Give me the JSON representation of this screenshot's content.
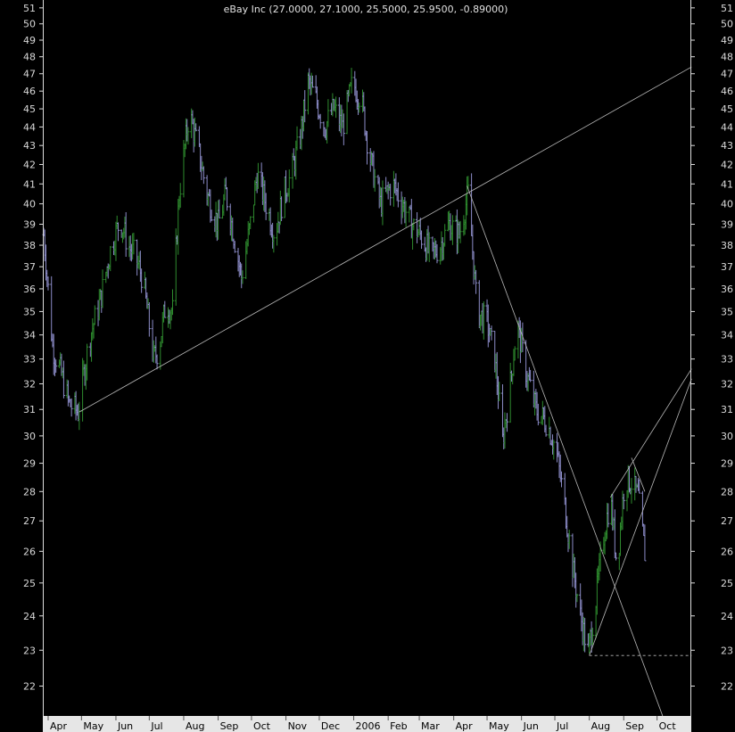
{
  "chart_data": {
    "type": "ohlc",
    "title": "eBay Inc (27.0000, 27.1000, 25.5000, 25.9500, -0.89000)",
    "scale": "log",
    "ylim": [
      21.2,
      51.5
    ],
    "y_ticks": [
      22,
      23,
      24,
      25,
      26,
      27,
      28,
      29,
      30,
      31,
      32,
      33,
      34,
      35,
      36,
      37,
      38,
      39,
      40,
      41,
      42,
      43,
      44,
      45,
      46,
      47,
      48,
      49,
      50,
      51
    ],
    "x_range": [
      "2005-03-28",
      "2006-10-31"
    ],
    "x_labels": [
      {
        "date": "2005-04-01",
        "label": "Apr"
      },
      {
        "date": "2005-05-01",
        "label": "May"
      },
      {
        "date": "2005-06-01",
        "label": "Jun"
      },
      {
        "date": "2005-07-01",
        "label": "Jul"
      },
      {
        "date": "2005-08-01",
        "label": "Aug"
      },
      {
        "date": "2005-09-01",
        "label": "Sep"
      },
      {
        "date": "2005-10-01",
        "label": "Oct"
      },
      {
        "date": "2005-11-01",
        "label": "Nov"
      },
      {
        "date": "2005-12-01",
        "label": "Dec"
      },
      {
        "date": "2006-01-01",
        "label": "2006"
      },
      {
        "date": "2006-02-01",
        "label": "Feb"
      },
      {
        "date": "2006-03-01",
        "label": "Mar"
      },
      {
        "date": "2006-04-01",
        "label": "Apr"
      },
      {
        "date": "2006-05-01",
        "label": "May"
      },
      {
        "date": "2006-06-01",
        "label": "Jun"
      },
      {
        "date": "2006-07-01",
        "label": "Jul"
      },
      {
        "date": "2006-08-01",
        "label": "Aug"
      },
      {
        "date": "2006-09-01",
        "label": "Sep"
      },
      {
        "date": "2006-10-01",
        "label": "Oct"
      }
    ],
    "price_path": [
      [
        "2005-03-28",
        38.5
      ],
      [
        "2005-04-05",
        33.5
      ],
      [
        "2005-04-12",
        32.5
      ],
      [
        "2005-04-20",
        31.2
      ],
      [
        "2005-04-28",
        30.9
      ],
      [
        "2005-05-08",
        33.8
      ],
      [
        "2005-05-18",
        35.5
      ],
      [
        "2005-05-28",
        38.0
      ],
      [
        "2005-06-05",
        39.2
      ],
      [
        "2005-06-12",
        38.0
      ],
      [
        "2005-06-18",
        37.5
      ],
      [
        "2005-06-25",
        36.5
      ],
      [
        "2005-07-05",
        33.0
      ],
      [
        "2005-07-10",
        33.5
      ],
      [
        "2005-07-16",
        35.4
      ],
      [
        "2005-07-22",
        35.0
      ],
      [
        "2005-07-28",
        40.5
      ],
      [
        "2005-08-06",
        44.8
      ],
      [
        "2005-08-15",
        42.5
      ],
      [
        "2005-08-22",
        40.5
      ],
      [
        "2005-09-01",
        39.0
      ],
      [
        "2005-09-08",
        40.5
      ],
      [
        "2005-09-15",
        38.5
      ],
      [
        "2005-09-22",
        36.5
      ],
      [
        "2005-09-30",
        39.0
      ],
      [
        "2005-10-06",
        41.5
      ],
      [
        "2005-10-14",
        40.0
      ],
      [
        "2005-10-22",
        38.5
      ],
      [
        "2005-10-30",
        40.5
      ],
      [
        "2005-11-06",
        41.5
      ],
      [
        "2005-11-14",
        43.5
      ],
      [
        "2005-11-21",
        46.5
      ],
      [
        "2005-11-28",
        45.5
      ],
      [
        "2005-12-06",
        44.0
      ],
      [
        "2005-12-14",
        45.0
      ],
      [
        "2005-12-22",
        44.0
      ],
      [
        "2005-12-31",
        46.5
      ],
      [
        "2006-01-08",
        45.5
      ],
      [
        "2006-01-15",
        42.5
      ],
      [
        "2006-01-25",
        40.0
      ],
      [
        "2006-02-05",
        41.0
      ],
      [
        "2006-02-14",
        40.0
      ],
      [
        "2006-02-22",
        39.0
      ],
      [
        "2006-03-02",
        38.5
      ],
      [
        "2006-03-12",
        37.5
      ],
      [
        "2006-03-20",
        38.0
      ],
      [
        "2006-03-28",
        39.0
      ],
      [
        "2006-04-06",
        38.5
      ],
      [
        "2006-04-14",
        40.5
      ],
      [
        "2006-04-22",
        35.0
      ],
      [
        "2006-05-01",
        34.5
      ],
      [
        "2006-05-08",
        33.0
      ],
      [
        "2006-05-15",
        29.8
      ],
      [
        "2006-05-22",
        32.0
      ],
      [
        "2006-05-28",
        34.5
      ],
      [
        "2006-06-05",
        32.5
      ],
      [
        "2006-06-14",
        31.0
      ],
      [
        "2006-06-24",
        30.5
      ],
      [
        "2006-07-02",
        29.5
      ],
      [
        "2006-07-10",
        27.5
      ],
      [
        "2006-07-17",
        25.5
      ],
      [
        "2006-07-24",
        24.0
      ],
      [
        "2006-07-31",
        22.9
      ],
      [
        "2006-08-07",
        24.5
      ],
      [
        "2006-08-14",
        26.5
      ],
      [
        "2006-08-20",
        27.8
      ],
      [
        "2006-08-26",
        25.5
      ],
      [
        "2006-09-02",
        28.5
      ],
      [
        "2006-09-08",
        28.3
      ],
      [
        "2006-09-14",
        27.8
      ],
      [
        "2006-09-20",
        25.95
      ]
    ],
    "trendlines": [
      {
        "from": [
          "2005-04-29",
          30.9
        ],
        "to": [
          "2006-11-01",
          47.4
        ],
        "style": "solid"
      },
      {
        "from": [
          "2006-04-13",
          40.9
        ],
        "to": [
          "2006-10-15",
          20.5
        ],
        "style": "solid"
      },
      {
        "from": [
          "2006-08-01",
          22.85
        ],
        "to": [
          "2006-11-01",
          32.2
        ],
        "style": "solid"
      },
      {
        "from": [
          "2006-08-20",
          27.8
        ],
        "to": [
          "2006-11-01",
          32.6
        ],
        "style": "solid"
      },
      {
        "from": [
          "2006-09-08",
          29.2
        ],
        "to": [
          "2006-09-20",
          28.0
        ],
        "style": "solid"
      },
      {
        "from": [
          "2006-08-01",
          22.85
        ],
        "to": [
          "2006-11-01",
          22.85
        ],
        "style": "dashed"
      }
    ],
    "colors": {
      "up": "#2e8b2e",
      "down": "#8c8cc8",
      "background": "#000000",
      "axis": "#e8e8e8",
      "trendline": "#b8b8b8"
    }
  }
}
